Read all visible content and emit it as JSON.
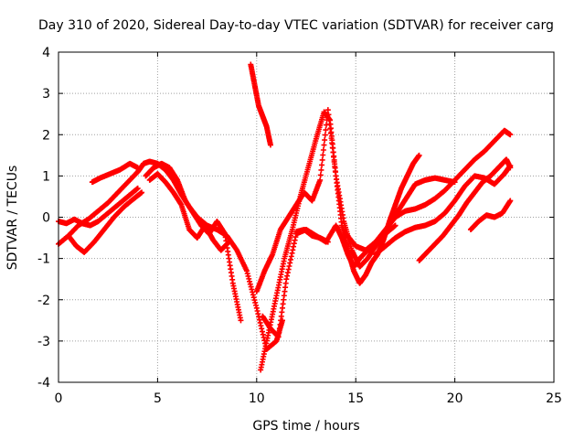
{
  "chart_data": {
    "type": "scatter",
    "title": "Day 310 of 2020, Sidereal Day-to-day VTEC variation (SDTVAR) for receiver carg",
    "xlabel": "GPS time / hours",
    "ylabel": "SDTVAR / TECUs",
    "xlim": [
      0,
      25
    ],
    "ylim": [
      -4,
      4
    ],
    "x_ticks": [
      0,
      5,
      10,
      15,
      20,
      25
    ],
    "y_ticks": [
      -4,
      -3,
      -2,
      -1,
      0,
      1,
      2,
      3,
      4
    ],
    "x_tick_labels": [
      "0",
      "5",
      "10",
      "15",
      "20",
      "25"
    ],
    "y_tick_labels": [
      "-4",
      "-3",
      "-2",
      "-1",
      "0",
      "1",
      "2",
      "3",
      "4"
    ],
    "grid": true,
    "marker": "+",
    "color": "#ff0000",
    "series": [
      {
        "name": "s1",
        "x": [
          0.0,
          0.5,
          1.0,
          1.5,
          2.0,
          2.5,
          3.0,
          3.5,
          4.0
        ],
        "y": [
          -0.65,
          -0.45,
          -0.2,
          -0.05,
          0.15,
          0.35,
          0.6,
          0.85,
          1.1
        ]
      },
      {
        "name": "s2",
        "x": [
          0.0,
          0.4,
          0.8,
          1.2,
          1.6,
          2.0,
          2.5,
          3.0,
          3.5,
          4.0
        ],
        "y": [
          -0.1,
          -0.15,
          -0.05,
          -0.15,
          -0.2,
          -0.1,
          0.1,
          0.3,
          0.5,
          0.7
        ]
      },
      {
        "name": "s3",
        "x": [
          0.5,
          0.9,
          1.3,
          1.8,
          2.3,
          2.8,
          3.3,
          3.8,
          4.2
        ],
        "y": [
          -0.45,
          -0.7,
          -0.85,
          -0.6,
          -0.3,
          0.0,
          0.25,
          0.45,
          0.6
        ]
      },
      {
        "name": "s4",
        "x": [
          1.7,
          2.1,
          2.6,
          3.1,
          3.6,
          4.0
        ],
        "y": [
          0.85,
          0.95,
          1.05,
          1.15,
          1.3,
          1.2
        ]
      },
      {
        "name": "s5",
        "x": [
          4.0,
          4.3,
          4.6,
          5.0,
          5.4,
          5.8,
          6.2,
          6.6,
          7.0,
          7.5,
          8.0,
          8.5,
          9.0,
          9.5,
          10.0,
          10.5,
          11.0,
          11.3
        ],
        "y": [
          1.1,
          1.3,
          1.35,
          1.3,
          1.15,
          0.9,
          0.55,
          0.25,
          0.0,
          -0.2,
          -0.3,
          -0.45,
          -0.8,
          -1.3,
          -2.2,
          -3.2,
          -3.0,
          -2.5
        ]
      },
      {
        "name": "s6",
        "x": [
          4.4,
          4.8,
          5.2,
          5.6,
          6.0,
          6.4,
          6.8,
          7.2,
          7.6,
          8.0,
          8.4,
          8.8,
          9.2
        ],
        "y": [
          1.0,
          1.2,
          1.3,
          1.2,
          0.9,
          0.4,
          0.1,
          -0.2,
          -0.4,
          -0.1,
          -0.4,
          -1.6,
          -2.5
        ]
      },
      {
        "name": "s7",
        "x": [
          4.6,
          5.0,
          5.4,
          5.8,
          6.2,
          6.6,
          7.0,
          7.4,
          7.8,
          8.2,
          8.6
        ],
        "y": [
          0.9,
          1.05,
          0.85,
          0.6,
          0.3,
          -0.3,
          -0.5,
          -0.2,
          -0.55,
          -0.8,
          -0.6
        ]
      },
      {
        "name": "s8",
        "x": [
          9.7,
          9.9,
          10.1,
          10.3,
          10.5,
          10.7
        ],
        "y": [
          3.7,
          3.2,
          2.7,
          2.45,
          2.2,
          1.75
        ]
      },
      {
        "name": "s9",
        "x": [
          10.2,
          10.6,
          11.0,
          11.4,
          11.8,
          12.2,
          12.6,
          13.0,
          13.4,
          13.7,
          14.0,
          14.3,
          14.6,
          14.9,
          15.2,
          15.5,
          15.8,
          16.1,
          16.4,
          16.7,
          17.0,
          17.3,
          17.6,
          17.9,
          18.2
        ],
        "y": [
          -3.7,
          -2.8,
          -1.9,
          -1.0,
          -0.3,
          0.5,
          1.2,
          1.9,
          2.55,
          2.35,
          1.0,
          -0.2,
          -0.8,
          -1.3,
          -1.6,
          -1.4,
          -1.1,
          -0.9,
          -0.55,
          -0.1,
          0.3,
          0.7,
          1.0,
          1.3,
          1.5
        ]
      },
      {
        "name": "s10",
        "x": [
          10.0,
          10.4,
          10.8,
          11.2,
          11.6,
          12.0,
          12.4,
          12.8,
          13.2,
          13.6,
          14.0,
          14.4,
          14.8,
          15.2,
          15.6,
          16.0,
          16.4,
          16.8,
          17.2,
          17.6,
          18.0,
          18.5,
          19.0,
          19.5,
          20.0
        ],
        "y": [
          -1.8,
          -1.3,
          -0.9,
          -0.3,
          0.0,
          0.3,
          0.6,
          0.4,
          0.9,
          2.6,
          1.0,
          -0.1,
          -0.8,
          -1.2,
          -1.0,
          -0.7,
          -0.4,
          -0.1,
          0.2,
          0.5,
          0.8,
          0.9,
          0.95,
          0.9,
          0.85
        ]
      },
      {
        "name": "s11",
        "x": [
          10.3,
          10.7,
          11.1,
          11.5,
          12.0,
          12.5,
          13.0,
          13.5,
          14.0,
          14.3,
          14.6,
          14.9,
          15.2,
          15.6,
          16.0,
          16.5,
          17.0
        ],
        "y": [
          -2.4,
          -2.7,
          -2.9,
          -1.5,
          -0.4,
          -0.3,
          -0.45,
          -0.6,
          -0.2,
          -0.5,
          -0.9,
          -1.2,
          -1.0,
          -0.8,
          -0.6,
          -0.4,
          -0.2
        ]
      },
      {
        "name": "s12",
        "x": [
          12.0,
          12.4,
          12.8,
          13.2,
          13.6
        ],
        "y": [
          -0.35,
          -0.3,
          -0.45,
          -0.5,
          -0.6
        ]
      },
      {
        "name": "s13",
        "x": [
          14.5,
          15.0,
          15.5,
          16.0,
          16.5,
          17.0,
          17.5,
          18.0,
          18.5,
          19.0,
          19.5,
          20.0,
          20.5,
          21.0,
          21.5,
          22.0,
          22.5,
          22.8
        ],
        "y": [
          -0.4,
          -0.7,
          -0.8,
          -0.6,
          -0.3,
          0.0,
          0.15,
          0.2,
          0.3,
          0.45,
          0.65,
          0.9,
          1.15,
          1.4,
          1.6,
          1.85,
          2.1,
          2.0
        ]
      },
      {
        "name": "s14",
        "x": [
          16.0,
          16.5,
          17.0,
          17.5,
          18.0,
          18.5,
          19.0,
          19.5,
          20.0,
          20.5,
          21.0,
          21.5,
          22.0,
          22.5,
          22.8
        ],
        "y": [
          -0.9,
          -0.7,
          -0.5,
          -0.35,
          -0.25,
          -0.2,
          -0.1,
          0.1,
          0.4,
          0.75,
          1.0,
          0.95,
          0.8,
          1.05,
          1.25
        ]
      },
      {
        "name": "s15",
        "x": [
          18.2,
          18.6,
          19.0,
          19.4,
          19.8,
          20.2,
          20.6,
          21.0,
          21.4,
          21.8,
          22.2,
          22.6,
          22.8
        ],
        "y": [
          -1.05,
          -0.85,
          -0.65,
          -0.45,
          -0.2,
          0.05,
          0.35,
          0.6,
          0.85,
          1.0,
          1.2,
          1.4,
          1.2
        ]
      },
      {
        "name": "s16",
        "x": [
          20.8,
          21.2,
          21.6,
          22.0,
          22.4,
          22.8
        ],
        "y": [
          -0.3,
          -0.1,
          0.05,
          0.0,
          0.1,
          0.4
        ]
      }
    ]
  }
}
